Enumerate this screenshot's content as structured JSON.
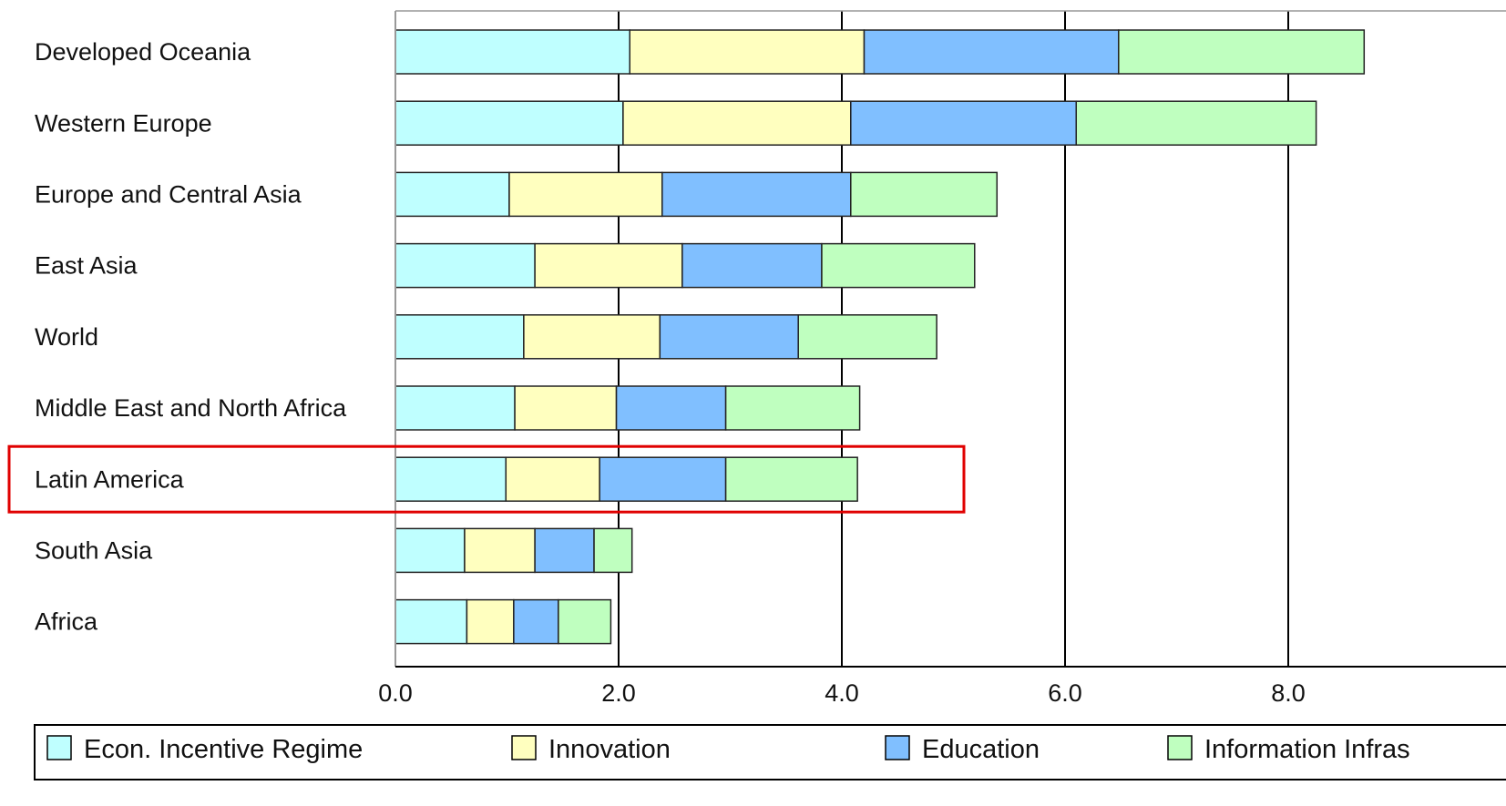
{
  "chart_data": {
    "type": "bar",
    "orientation": "horizontal",
    "stacked": true,
    "categories": [
      "Developed Oceania",
      "Western Europe",
      "Europe and Central Asia",
      "East Asia",
      "World",
      "Middle East and North Africa",
      "Latin America",
      "South Asia",
      "Africa"
    ],
    "series": [
      {
        "name": "Econ. Incentive Regime",
        "color": "#bfffff",
        "values": [
          2.1,
          2.04,
          1.02,
          1.25,
          1.15,
          1.07,
          0.99,
          0.62,
          0.64
        ]
      },
      {
        "name": "Innovation",
        "color": "#ffffbf",
        "values": [
          2.1,
          2.04,
          1.37,
          1.32,
          1.22,
          0.91,
          0.84,
          0.63,
          0.42
        ]
      },
      {
        "name": "Education",
        "color": "#80bfff",
        "values": [
          2.28,
          2.02,
          1.69,
          1.25,
          1.24,
          0.98,
          1.13,
          0.53,
          0.4
        ]
      },
      {
        "name": "Information Infras",
        "color": "#bfffbf",
        "values": [
          2.2,
          2.15,
          1.31,
          1.37,
          1.24,
          1.2,
          1.18,
          0.34,
          0.47
        ]
      }
    ],
    "xlim": [
      0,
      9.2
    ],
    "xticks": [
      "0.0",
      "2.0",
      "4.0",
      "6.0",
      "8.0"
    ],
    "xtick_values": [
      0,
      2,
      4,
      6,
      8
    ],
    "grid": true,
    "highlighted_category": "Latin America",
    "highlight_color": "#e00000",
    "legend_position": "bottom"
  }
}
